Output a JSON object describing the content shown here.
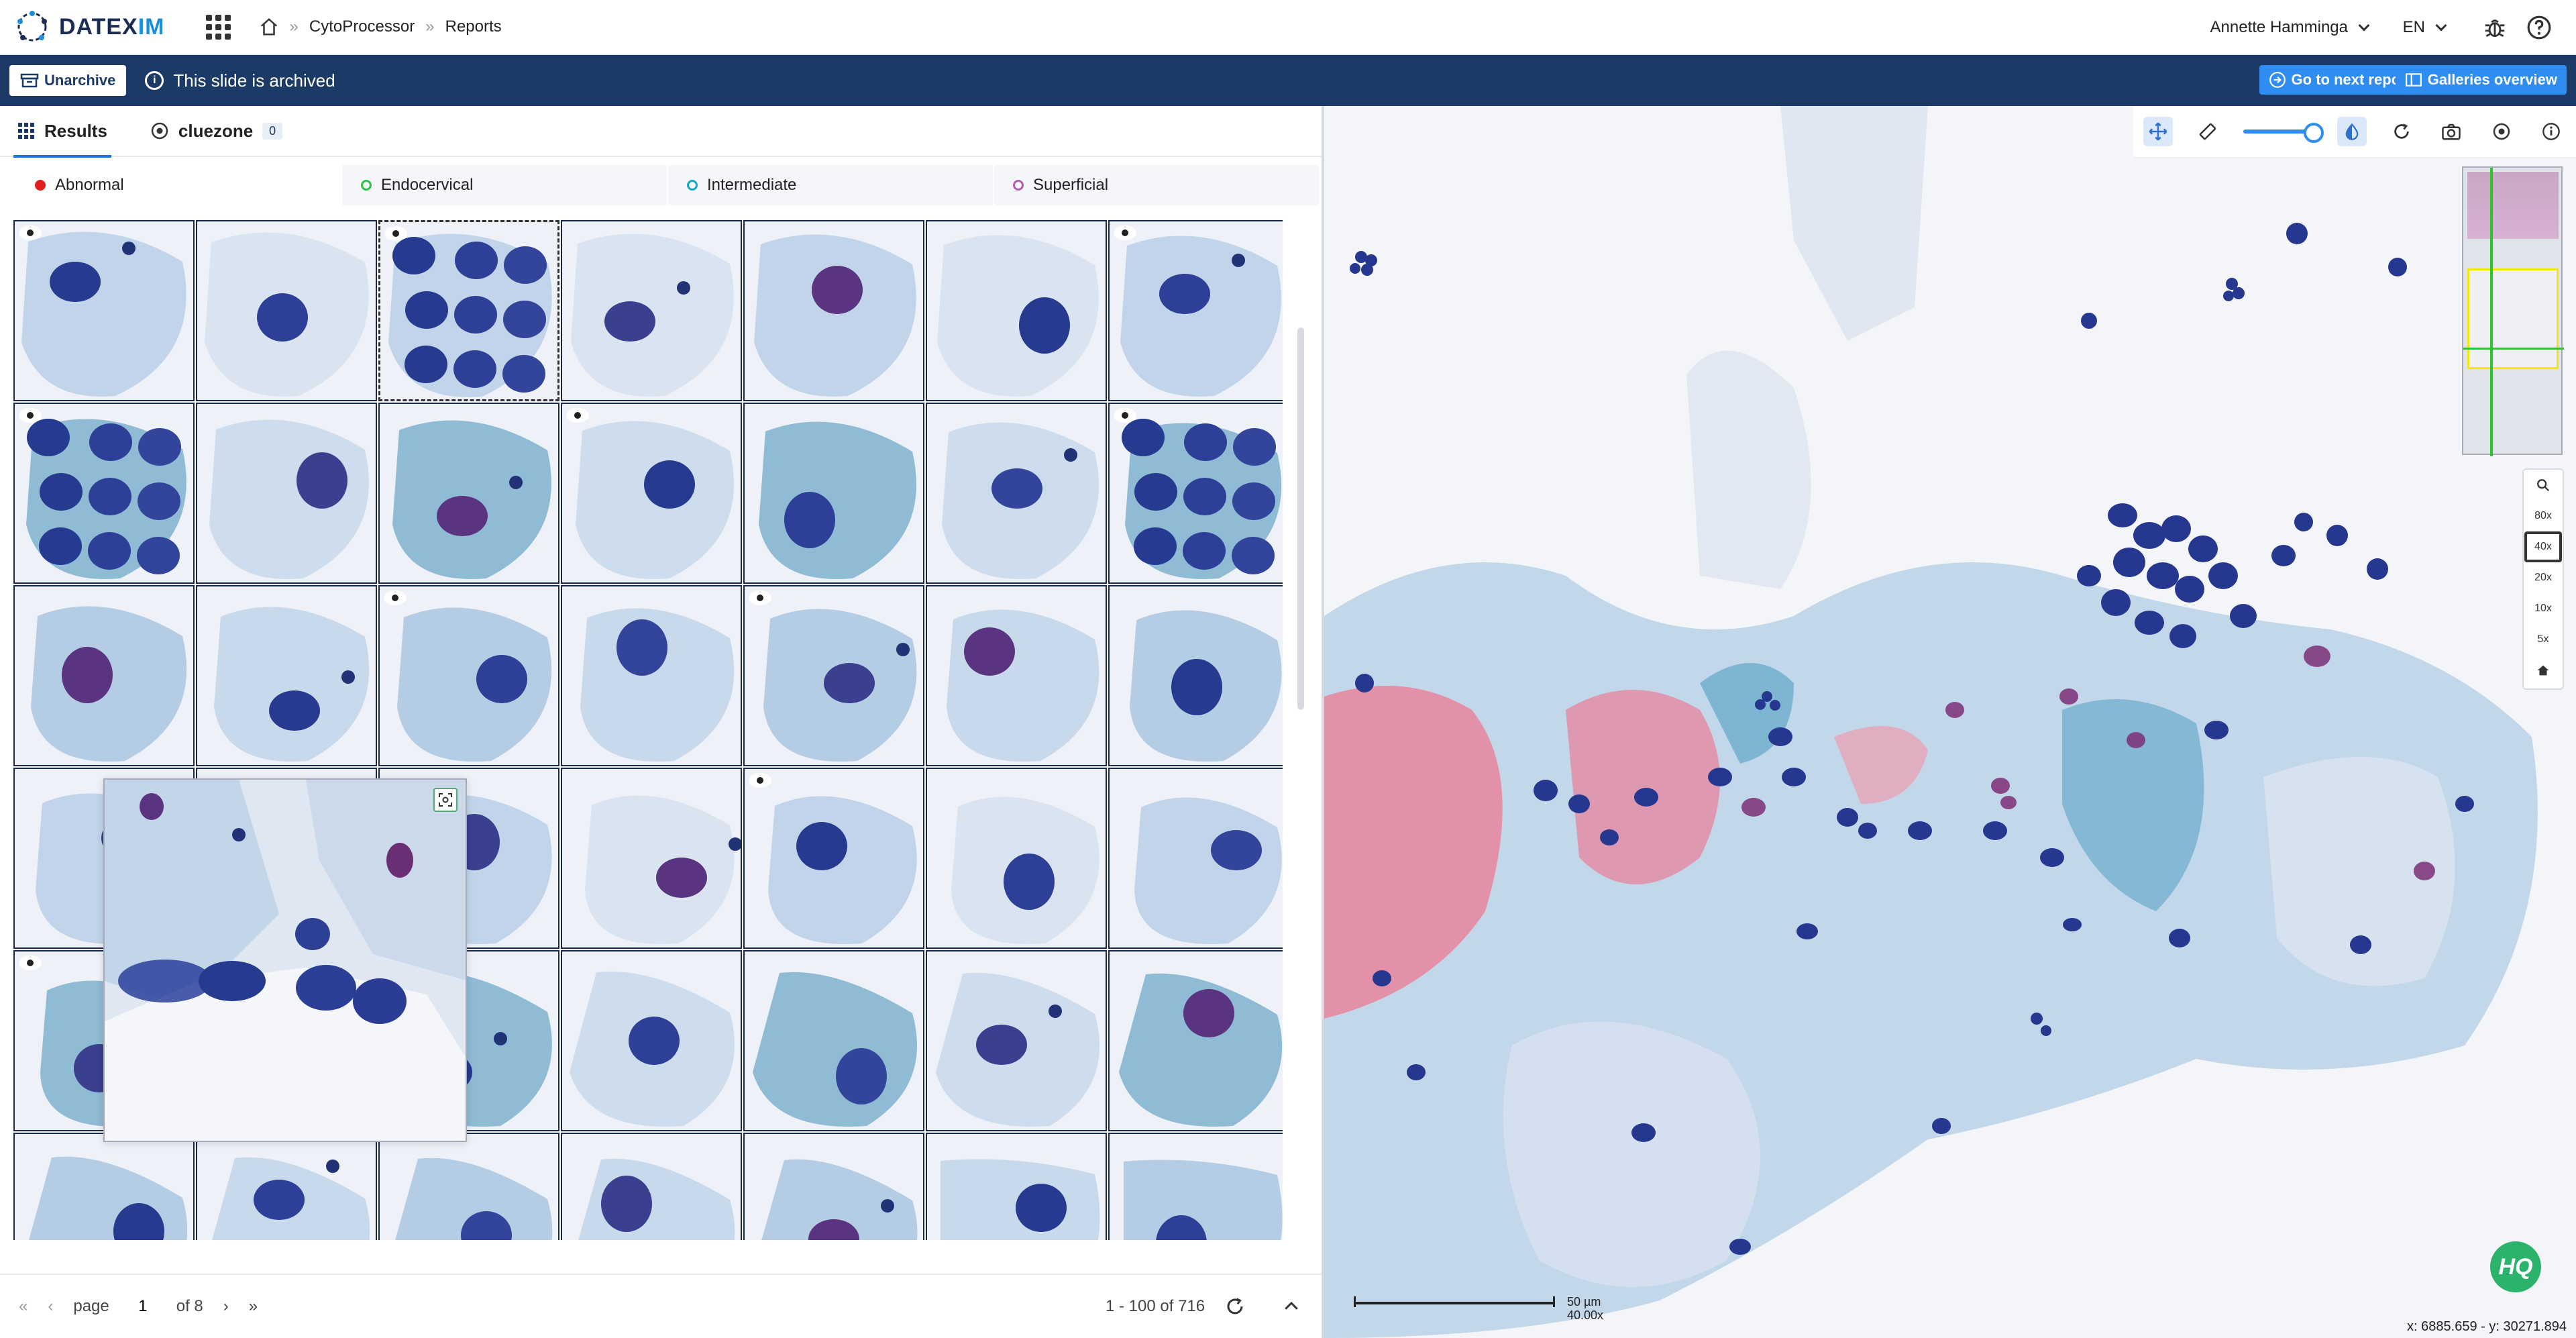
{
  "app": {
    "logo_text_a": "DATEX",
    "logo_text_b": "IM"
  },
  "breadcrumb": {
    "items": [
      "CytoProcessor",
      "Reports"
    ]
  },
  "user": {
    "name": "Annette Hamminga",
    "language": "EN"
  },
  "archive_bar": {
    "unarchive_label": "Unarchive",
    "message": "This slide is archived",
    "next_report_label": "Go to next report",
    "galleries_label": "Galleries overview"
  },
  "tabs": [
    {
      "label": "Results",
      "active": true
    },
    {
      "label": "cluezone",
      "count": "0",
      "active": false
    }
  ],
  "subtabs": [
    {
      "label": "Abnormal",
      "color": "#e02020",
      "active": true
    },
    {
      "label": "Endocervical",
      "color": "#2fbf4a",
      "active": false
    },
    {
      "label": "Intermediate",
      "color": "#1aa6c9",
      "active": false
    },
    {
      "label": "Superficial",
      "color": "#b060b0",
      "active": false
    }
  ],
  "pager": {
    "page_label": "page",
    "page": "1",
    "of_label": "of 8",
    "range": "1 - 100 of 716"
  },
  "viewer": {
    "zoom_levels": [
      "80x",
      "40x",
      "20x",
      "10x",
      "5x"
    ],
    "current_zoom": "40x",
    "scale_bar_text": "50 µm",
    "scale_zoom_text": "40.00x",
    "coordinates": "x: 6885.659 - y: 30271.894",
    "hq_label": "HQ"
  }
}
